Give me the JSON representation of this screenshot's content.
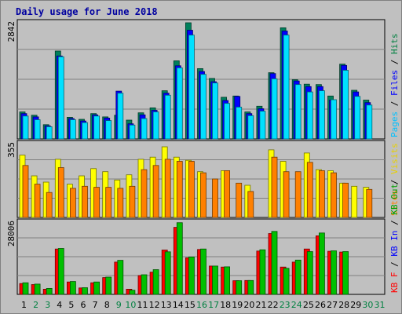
{
  "chart_data": {
    "type": "bar",
    "title": "Daily usage for June 2018",
    "days": [
      "1",
      "2",
      "3",
      "4",
      "5",
      "6",
      "7",
      "8",
      "9",
      "10",
      "11",
      "12",
      "13",
      "14",
      "15",
      "16",
      "17",
      "18",
      "19",
      "20",
      "21",
      "22",
      "23",
      "24",
      "25",
      "26",
      "27",
      "28",
      "29",
      "30",
      "31"
    ],
    "weekend_days": [
      "2",
      "3",
      "9",
      "10",
      "16",
      "17",
      "23",
      "24",
      "30",
      "31"
    ],
    "panels": [
      {
        "id": "top",
        "ymax_label": "2842",
        "ylim": [
          0,
          2842
        ],
        "series_labels": [
          "Pages",
          "Files",
          "Hits"
        ],
        "series": [
          {
            "name": "Hits",
            "color": "#00805c",
            "values": [
              660,
              580,
              350,
              2150,
              530,
              480,
              620,
              540,
              580,
              460,
              640,
              760,
              1180,
              1910,
              2842,
              1720,
              1480,
              1020,
              1050,
              660,
              800,
              1620,
              2720,
              1450,
              1340,
              1330,
              1050,
              1830,
              1190,
              950,
              0
            ]
          },
          {
            "name": "Files",
            "color": "#0000ff",
            "values": [
              620,
              540,
              320,
              2030,
              500,
              440,
              590,
              510,
              1170,
              370,
              590,
              700,
              1120,
              1790,
              2660,
              1650,
              1400,
              940,
              1040,
              620,
              740,
              1600,
              2640,
              1420,
              1280,
              1280,
              950,
              1800,
              1150,
              890,
              0
            ]
          },
          {
            "name": "Pages",
            "color": "#00e0ff",
            "values": [
              560,
              470,
              300,
              2010,
              470,
              400,
              560,
              450,
              1120,
              340,
              500,
              660,
              1070,
              1740,
              2540,
              1580,
              1370,
              870,
              780,
              570,
              680,
              1470,
              2540,
              1330,
              1150,
              1180,
              960,
              1680,
              1040,
              830,
              0
            ]
          }
        ]
      },
      {
        "id": "mid",
        "ymax_label": "355",
        "ylim": [
          0,
          355
        ],
        "series_labels": [
          "Sites",
          "Visits"
        ],
        "series": [
          {
            "name": "Visits",
            "color": "#ffff00",
            "values": [
              300,
              200,
              170,
              280,
              160,
              200,
              235,
              220,
              180,
              205,
              280,
              290,
              340,
              290,
              275,
              220,
              0,
              225,
              0,
              155,
              0,
              325,
              270,
              0,
              310,
              230,
              225,
              165,
              150,
              145,
              0
            ]
          },
          {
            "name": "Sites",
            "color": "#ff8000",
            "values": [
              250,
              160,
              120,
              240,
              140,
              150,
              145,
              145,
              140,
              150,
              230,
              250,
              280,
              270,
              270,
              215,
              185,
              225,
              165,
              125,
              0,
              290,
              220,
              220,
              265,
              225,
              215,
              165,
              0,
              135,
              0
            ]
          }
        ]
      },
      {
        "id": "bottom",
        "ymax_label": "28006",
        "ylim": [
          0,
          28006
        ],
        "series_labels": [
          "KB F",
          "KB In",
          "KB Out"
        ],
        "series": [
          {
            "name": "KB F",
            "color": "#ff0000",
            "values": [
              4200,
              3800,
              2000,
              17600,
              4800,
              2500,
              4500,
              6500,
              12500,
              2000,
              7300,
              8600,
              17200,
              26000,
              14200,
              17400,
              11000,
              10600,
              5300,
              5400,
              16800,
              23600,
              10600,
              12500,
              17600,
              22700,
              16700,
              16400,
              0,
              0,
              0
            ]
          },
          {
            "name": "KB In",
            "color": "#0000ff",
            "values": [
              0,
              0,
              0,
              0,
              0,
              0,
              0,
              0,
              0,
              0,
              0,
              0,
              0,
              0,
              0,
              0,
              0,
              0,
              0,
              0,
              0,
              0,
              0,
              0,
              0,
              0,
              0,
              0,
              0,
              0,
              0
            ]
          },
          {
            "name": "KB Out",
            "color": "#00c000",
            "values": [
              4500,
              4000,
              2300,
              17800,
              5000,
              2600,
              4800,
              6700,
              13200,
              1600,
              7600,
              9600,
              16500,
              27800,
              14500,
              17600,
              11000,
              10700,
              5300,
              5400,
              17300,
              24400,
              10100,
              13300,
              16600,
              23800,
              16900,
              16600,
              0,
              0,
              0
            ]
          }
        ]
      }
    ]
  },
  "colors": {
    "page_bg": "#ffffff",
    "chart_bg": "#c0c0c0",
    "title": "#0000a0",
    "weekday_tick": "#000000",
    "weekend_tick": "#008040",
    "label_pages": "#00c0ff",
    "label_files": "#0000ff",
    "label_hits": "#008040",
    "label_sites": "#ff8000",
    "label_visits": "#e8d000",
    "label_kbf": "#ff0000",
    "label_kbin": "#0000ff",
    "label_kbout": "#00a000"
  }
}
